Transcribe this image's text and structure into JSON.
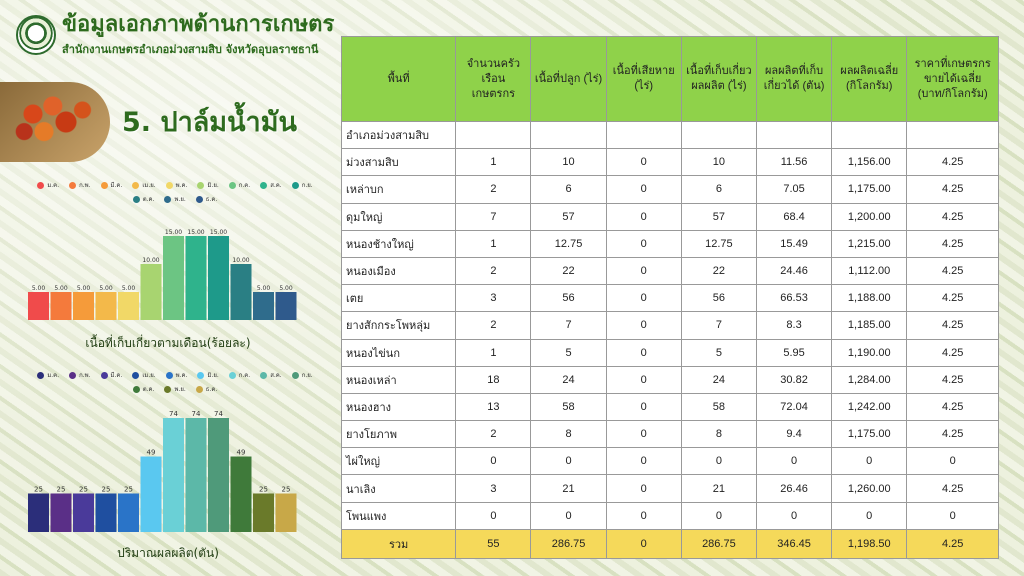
{
  "header": {
    "title": "ข้อมูลเอกภาพด้านการเกษตร",
    "subtitle": "สำนักงานเกษตรอำเภอม่วงสามสิบ จังหวัดอุบลราชธานี"
  },
  "section_title": "5. ปาล์มน้ำมัน",
  "chart_data": [
    {
      "type": "bar",
      "categories": [
        "ม.ค.",
        "ก.พ.",
        "มี.ค.",
        "เม.ย.",
        "พ.ค.",
        "มิ.ย.",
        "ก.ค.",
        "ส.ค.",
        "ก.ย.",
        "ต.ค.",
        "พ.ย.",
        "ธ.ค."
      ],
      "values": [
        5,
        5,
        5,
        5,
        5,
        10,
        15,
        15,
        15,
        10,
        5,
        5
      ],
      "value_labels": [
        "5.00",
        "5.00",
        "5.00",
        "5.00",
        "5.00",
        "10.00",
        "15.00",
        "15.00",
        "15.00",
        "10.00",
        "5.00",
        "5.00"
      ],
      "colors": [
        "#f04b4b",
        "#f47a3c",
        "#f59b3a",
        "#f3b94a",
        "#f1d867",
        "#a8d470",
        "#6cc583",
        "#2fb38c",
        "#1e9a8a",
        "#2a7f84",
        "#2f6c8c",
        "#2f5a8c"
      ],
      "xlabel": "เนื้อที่เก็บเกี่ยวตามเดือน(ร้อยละ)",
      "ylim": [
        0,
        15
      ]
    },
    {
      "type": "bar",
      "categories": [
        "ม.ค.",
        "ก.พ.",
        "มี.ค.",
        "เม.ย.",
        "พ.ค.",
        "มิ.ย.",
        "ก.ค.",
        "ส.ค.",
        "ก.ย.",
        "ต.ค.",
        "พ.ย.",
        "ธ.ค."
      ],
      "values": [
        25,
        25,
        25,
        25,
        25,
        49,
        74,
        74,
        74,
        49,
        25,
        25
      ],
      "value_labels": [
        "25",
        "25",
        "25",
        "25",
        "25",
        "49",
        "74",
        "74",
        "74",
        "49",
        "25",
        "25"
      ],
      "colors": [
        "#2b2e7a",
        "#5a2f87",
        "#4a3a9a",
        "#1f4fa0",
        "#2a74c8",
        "#5ac8f0",
        "#6ad0d6",
        "#5cb8a8",
        "#4f9a7a",
        "#3f7a3a",
        "#6a7a2a",
        "#c8a848"
      ],
      "xlabel": "ปริมาณผลผลิต(ตัน)",
      "ylim": [
        0,
        74
      ]
    }
  ],
  "table": {
    "headers": [
      "พื้นที่",
      "จำนวนครัวเรือน เกษตรกร",
      "เนื้อที่ปลูก (ไร่)",
      "เนื้อที่เสียหาย (ไร่)",
      "เนื้อที่เก็บเกี่ยวผลผลิต (ไร่)",
      "ผลผลิตที่เก็บเกี่ยวได้ (ตัน)",
      "ผลผลิตเฉลี่ย (กิโลกรัม)",
      "ราคาที่เกษตรกรขายได้เฉลี่ย (บาท/กิโลกรัม)"
    ],
    "district_label": "อำเภอม่วงสามสิบ",
    "rows": [
      [
        "ม่วงสามสิบ",
        "1",
        "10",
        "0",
        "10",
        "11.56",
        "1,156.00",
        "4.25"
      ],
      [
        "เหล่าบก",
        "2",
        "6",
        "0",
        "6",
        "7.05",
        "1,175.00",
        "4.25"
      ],
      [
        "ดุมใหญ่",
        "7",
        "57",
        "0",
        "57",
        "68.4",
        "1,200.00",
        "4.25"
      ],
      [
        "หนองช้างใหญ่",
        "1",
        "12.75",
        "0",
        "12.75",
        "15.49",
        "1,215.00",
        "4.25"
      ],
      [
        "หนองเมือง",
        "2",
        "22",
        "0",
        "22",
        "24.46",
        "1,112.00",
        "4.25"
      ],
      [
        "เตย",
        "3",
        "56",
        "0",
        "56",
        "66.53",
        "1,188.00",
        "4.25"
      ],
      [
        "ยางสักกระโพหลุ่ม",
        "2",
        "7",
        "0",
        "7",
        "8.3",
        "1,185.00",
        "4.25"
      ],
      [
        "หนองไข่นก",
        "1",
        "5",
        "0",
        "5",
        "5.95",
        "1,190.00",
        "4.25"
      ],
      [
        "หนองเหล่า",
        "18",
        "24",
        "0",
        "24",
        "30.82",
        "1,284.00",
        "4.25"
      ],
      [
        "หนองฮาง",
        "13",
        "58",
        "0",
        "58",
        "72.04",
        "1,242.00",
        "4.25"
      ],
      [
        "ยางโยภาพ",
        "2",
        "8",
        "0",
        "8",
        "9.4",
        "1,175.00",
        "4.25"
      ],
      [
        "ไผ่ใหญ่",
        "0",
        "0",
        "0",
        "0",
        "0",
        "0",
        "0"
      ],
      [
        "นาเลิง",
        "3",
        "21",
        "0",
        "21",
        "26.46",
        "1,260.00",
        "4.25"
      ],
      [
        "โพนแพง",
        "0",
        "0",
        "0",
        "0",
        "0",
        "0",
        "0"
      ]
    ],
    "total": [
      "รวม",
      "55",
      "286.75",
      "0",
      "286.75",
      "346.45",
      "1,198.50",
      "4.25"
    ]
  }
}
